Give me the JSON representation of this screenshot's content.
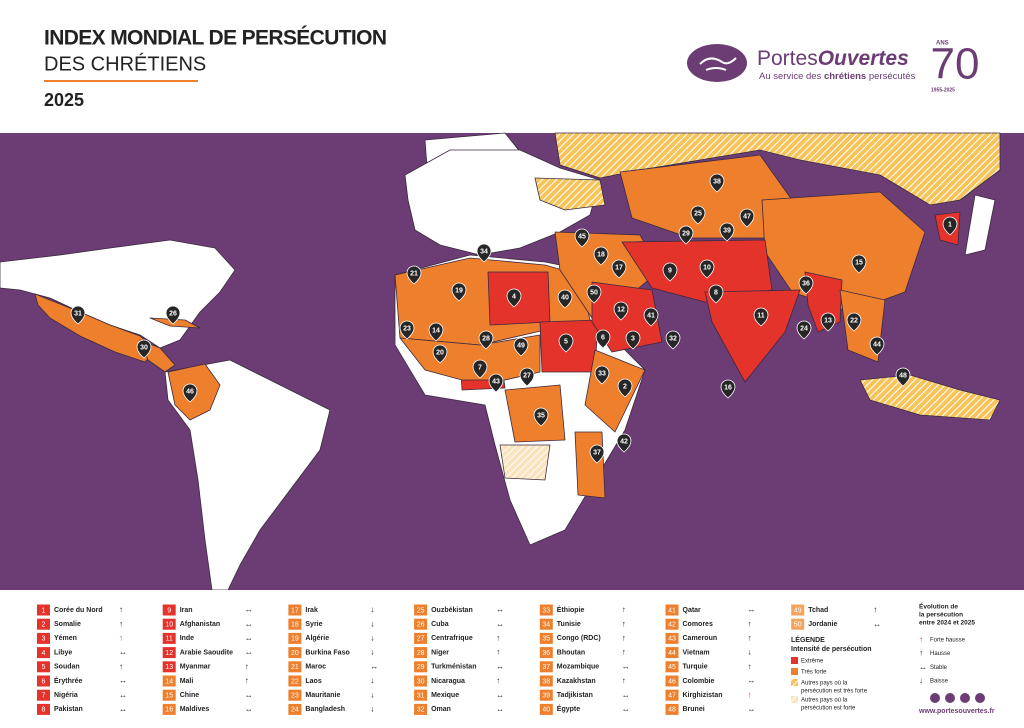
{
  "header": {
    "title": "INDEX MONDIAL DE PERSÉCUTION",
    "subtitle": "DES CHRÉTIENS",
    "year": "2025"
  },
  "logo": {
    "name_1": "Portes",
    "name_2": "Ouvertes",
    "tagline_1": "Au service des",
    "tagline_2": "chrétiens",
    "tagline_3": "persécutés",
    "anniversary": "70",
    "anniversary_unit": "ANS",
    "years": "1955-2025"
  },
  "map": {
    "pins": [
      38,
      25,
      47,
      29,
      39,
      1,
      45,
      18,
      17,
      9,
      10,
      34,
      21,
      19,
      4,
      40,
      50,
      12,
      41,
      3,
      32,
      8,
      11,
      36,
      15,
      13,
      22,
      24,
      44,
      31,
      26,
      30,
      23,
      14,
      28,
      49,
      5,
      6,
      20,
      7,
      43,
      27,
      33,
      2,
      35,
      16,
      46,
      37,
      42,
      48
    ]
  },
  "ranking": {
    "items": [
      {
        "rank": 1,
        "name": "Corée du Nord",
        "trend": "↑",
        "color": "#e4332b"
      },
      {
        "rank": 2,
        "name": "Somalie",
        "trend": "↑",
        "color": "#e4332b"
      },
      {
        "rank": 3,
        "name": "Yémen",
        "trend": "↑",
        "color": "#e4332b",
        "trend_color": "#e4332b"
      },
      {
        "rank": 4,
        "name": "Libye",
        "trend": "↔",
        "color": "#e4332b"
      },
      {
        "rank": 5,
        "name": "Soudan",
        "trend": "↑",
        "color": "#e4332b"
      },
      {
        "rank": 6,
        "name": "Érythrée",
        "trend": "↔",
        "color": "#e4332b"
      },
      {
        "rank": 7,
        "name": "Nigéria",
        "trend": "↔",
        "color": "#e4332b"
      },
      {
        "rank": 8,
        "name": "Pakistan",
        "trend": "↔",
        "color": "#e4332b"
      },
      {
        "rank": 9,
        "name": "Iran",
        "trend": "↔",
        "color": "#e4332b"
      },
      {
        "rank": 10,
        "name": "Afghanistan",
        "trend": "↔",
        "color": "#e4332b"
      },
      {
        "rank": 11,
        "name": "Inde",
        "trend": "↔",
        "color": "#e4332b"
      },
      {
        "rank": 12,
        "name": "Arabie Saoudite",
        "trend": "↔",
        "color": "#e4332b"
      },
      {
        "rank": 13,
        "name": "Myanmar",
        "trend": "↑",
        "color": "#e4332b"
      },
      {
        "rank": 14,
        "name": "Mali",
        "trend": "↑",
        "color": "#ee7f2d"
      },
      {
        "rank": 15,
        "name": "Chine",
        "trend": "↔",
        "color": "#ee7f2d"
      },
      {
        "rank": 16,
        "name": "Maldives",
        "trend": "↔",
        "color": "#ee7f2d"
      },
      {
        "rank": 17,
        "name": "Irak",
        "trend": "↓",
        "color": "#ee7f2d"
      },
      {
        "rank": 18,
        "name": "Syrie",
        "trend": "↓",
        "color": "#ee7f2d"
      },
      {
        "rank": 19,
        "name": "Algérie",
        "trend": "↓",
        "color": "#ee7f2d"
      },
      {
        "rank": 20,
        "name": "Burkina Faso",
        "trend": "↓",
        "color": "#ee7f2d"
      },
      {
        "rank": 21,
        "name": "Maroc",
        "trend": "↔",
        "color": "#ee7f2d"
      },
      {
        "rank": 22,
        "name": "Laos",
        "trend": "↓",
        "color": "#ee7f2d"
      },
      {
        "rank": 23,
        "name": "Mauritanie",
        "trend": "↓",
        "color": "#ee7f2d"
      },
      {
        "rank": 24,
        "name": "Bangladesh",
        "trend": "↓",
        "color": "#ee7f2d"
      },
      {
        "rank": 25,
        "name": "Ouzbékistan",
        "trend": "↔",
        "color": "#ee7f2d"
      },
      {
        "rank": 26,
        "name": "Cuba",
        "trend": "↔",
        "color": "#ee7f2d"
      },
      {
        "rank": 27,
        "name": "Centrafrique",
        "trend": "↑",
        "color": "#ee7f2d"
      },
      {
        "rank": 28,
        "name": "Niger",
        "trend": "↑",
        "color": "#ee7f2d"
      },
      {
        "rank": 29,
        "name": "Turkménistan",
        "trend": "↔",
        "color": "#ee7f2d"
      },
      {
        "rank": 30,
        "name": "Nicaragua",
        "trend": "↑",
        "color": "#ee7f2d"
      },
      {
        "rank": 31,
        "name": "Mexique",
        "trend": "↔",
        "color": "#ee7f2d"
      },
      {
        "rank": 32,
        "name": "Oman",
        "trend": "↔",
        "color": "#ee7f2d"
      },
      {
        "rank": 33,
        "name": "Éthiopie",
        "trend": "↑",
        "color": "#ee7f2d"
      },
      {
        "rank": 34,
        "name": "Tunisie",
        "trend": "↑",
        "color": "#ee7f2d"
      },
      {
        "rank": 35,
        "name": "Congo (RDC)",
        "trend": "↑",
        "color": "#ee7f2d"
      },
      {
        "rank": 36,
        "name": "Bhoutan",
        "trend": "↑",
        "color": "#ee7f2d"
      },
      {
        "rank": 37,
        "name": "Mozambique",
        "trend": "↔",
        "color": "#ee7f2d"
      },
      {
        "rank": 38,
        "name": "Kazakhstan",
        "trend": "↑",
        "color": "#ee7f2d"
      },
      {
        "rank": 39,
        "name": "Tadjikistan",
        "trend": "↔",
        "color": "#ee7f2d"
      },
      {
        "rank": 40,
        "name": "Égypte",
        "trend": "↔",
        "color": "#ee7f2d"
      },
      {
        "rank": 41,
        "name": "Qatar",
        "trend": "↔",
        "color": "#ee7f2d"
      },
      {
        "rank": 42,
        "name": "Comores",
        "trend": "↑",
        "color": "#ee7f2d"
      },
      {
        "rank": 43,
        "name": "Cameroun",
        "trend": "↑",
        "color": "#ee7f2d"
      },
      {
        "rank": 44,
        "name": "Vietnam",
        "trend": "↓",
        "color": "#ee7f2d"
      },
      {
        "rank": 45,
        "name": "Turquie",
        "trend": "↑",
        "color": "#ee7f2d"
      },
      {
        "rank": 46,
        "name": "Colombie",
        "trend": "↔",
        "color": "#ee7f2d"
      },
      {
        "rank": 47,
        "name": "Kirghizistan",
        "trend": "↑",
        "color": "#ee7f2d",
        "trend_color": "#e4332b"
      },
      {
        "rank": 48,
        "name": "Brunei",
        "trend": "↔",
        "color": "#ee7f2d"
      },
      {
        "rank": 49,
        "name": "Tchad",
        "trend": "↑",
        "color": "#f3a35a"
      },
      {
        "rank": 50,
        "name": "Jordanie",
        "trend": "↔",
        "color": "#f3a35a"
      }
    ]
  },
  "legend": {
    "title": "LÉGENDE",
    "subtitle": "Intensité de persécution",
    "items": [
      {
        "lines": [
          "Extrême"
        ],
        "color": "#e4332b"
      },
      {
        "lines": [
          "Très forte"
        ],
        "color": "#ee7f2d"
      },
      {
        "lines": [
          "Autres pays où la",
          "persécution est très forte"
        ],
        "color": "#f2a73b"
      },
      {
        "lines": [
          "Autres pays où la",
          "persécution est forte"
        ],
        "color": "#f7d9a6"
      }
    ]
  },
  "evolution": {
    "title": [
      "Évolution de",
      "la persécution",
      "entre 2024 et 2025"
    ],
    "items": [
      {
        "symbol": "↑",
        "label": "Forte hausse",
        "color": "#e4332b"
      },
      {
        "symbol": "↑",
        "label": "Hausse",
        "color": "#222222"
      },
      {
        "symbol": "↔",
        "label": "Stable",
        "color": "#222222"
      },
      {
        "symbol": "↓",
        "label": "Baisse",
        "color": "#222222"
      }
    ]
  },
  "website": "www.portesouvertes.fr"
}
